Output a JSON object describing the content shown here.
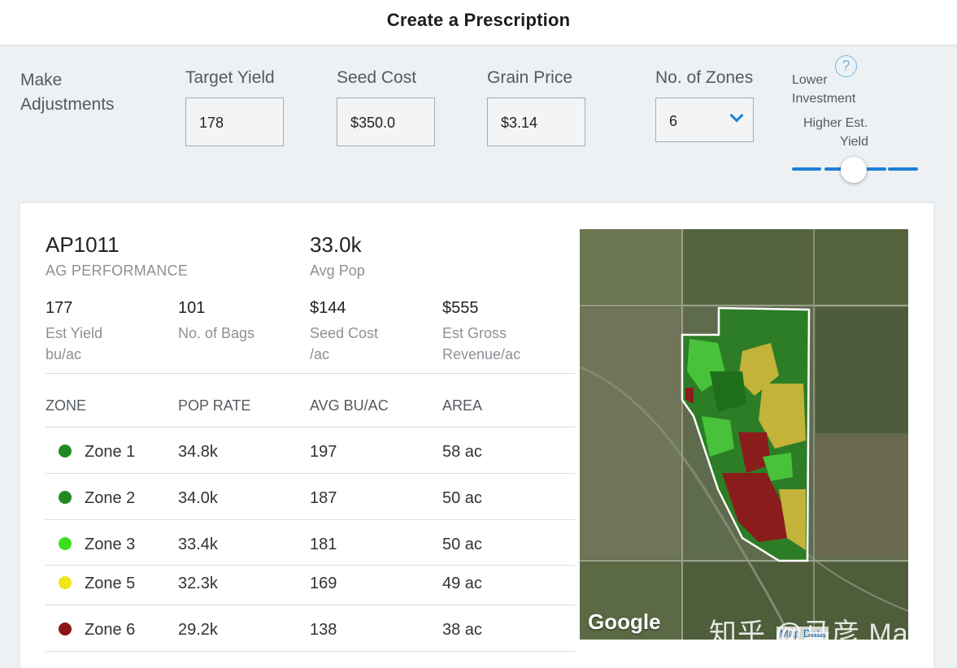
{
  "header": {
    "title": "Create a Prescription"
  },
  "adjustments": {
    "section_label": "Make Adjustments",
    "target_yield": {
      "label": "Target Yield",
      "value": "178"
    },
    "seed_cost": {
      "label": "Seed Cost",
      "value": "$350.0"
    },
    "grain_price": {
      "label": "Grain Price",
      "value": "$3.14"
    },
    "zones": {
      "label": "No. of Zones",
      "value": "6"
    },
    "slider": {
      "low_label_1": "Lower",
      "low_label_2": "Investment",
      "high_label_1": "Higher Est.",
      "high_label_2": "Yield",
      "help": "?",
      "position": 0.5,
      "color": "#1e7fd8"
    }
  },
  "summary": {
    "hybrid": "AP1011",
    "brand": "AG PERFORMANCE",
    "avg_pop": {
      "value": "33.0k",
      "label": "Avg Pop"
    },
    "stats": [
      {
        "value": "177",
        "label1": "Est Yield",
        "label2": "bu/ac"
      },
      {
        "value": "101",
        "label1": "No. of Bags",
        "label2": ""
      },
      {
        "value": "$144",
        "label1": "Seed Cost",
        "label2": "/ac"
      },
      {
        "value": "$555",
        "label1": "Est Gross",
        "label2": "Revenue/ac"
      }
    ]
  },
  "table": {
    "headers": [
      "ZONE",
      "POP RATE",
      "AVG BU/AC",
      "AREA"
    ],
    "rows": [
      {
        "zone": "Zone 1",
        "pop": "34.8k",
        "avg": "197",
        "area": "58 ac",
        "color": "#1f8a1f"
      },
      {
        "zone": "Zone 2",
        "pop": "34.0k",
        "avg": "187",
        "area": "50 ac",
        "color": "#1f8a1f"
      },
      {
        "zone": "Zone 3",
        "pop": "33.4k",
        "avg": "181",
        "area": "50 ac",
        "color": "#3adf1e"
      },
      {
        "zone": "Zone 5",
        "pop": "32.3k",
        "avg": "169",
        "area": "49 ac",
        "color": "#f2e61b"
      },
      {
        "zone": "Zone 6",
        "pop": "29.2k",
        "avg": "138",
        "area": "38 ac",
        "color": "#8e1414"
      }
    ]
  },
  "map": {
    "provider": "Google",
    "credit": "Map Data",
    "watermark": "知乎 @马彦 Mark"
  }
}
